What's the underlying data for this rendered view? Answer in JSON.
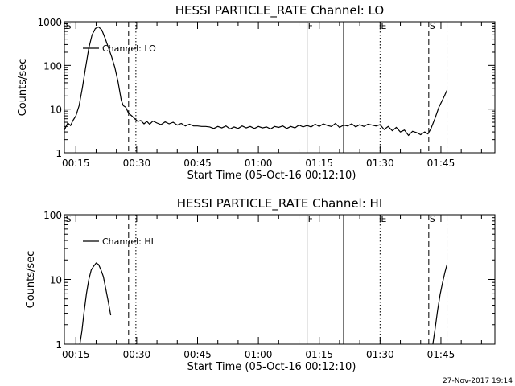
{
  "footer": {
    "timestamp": "27-Nov-2017 19:14"
  },
  "chart_data": [
    {
      "type": "line",
      "title": "HESSI PARTICLE_RATE Channel: LO",
      "xlabel": "Start Time (05-Oct-16 00:12:10)",
      "ylabel": "Counts/sec",
      "yscale": "log",
      "ylim": [
        1,
        1000
      ],
      "xlim_minutes": [
        12.17,
        118.3
      ],
      "yticks": [
        {
          "value": 1,
          "label": "1"
        },
        {
          "value": 10,
          "label": "10"
        },
        {
          "value": 100,
          "label": "100"
        },
        {
          "value": 1000,
          "label": "1000"
        }
      ],
      "xticks": [
        {
          "minute": 15,
          "label": "00:15"
        },
        {
          "minute": 30,
          "label": "00:30"
        },
        {
          "minute": 45,
          "label": "00:45"
        },
        {
          "minute": 60,
          "label": "01:00"
        },
        {
          "minute": 75,
          "label": "01:15"
        },
        {
          "minute": 90,
          "label": "01:30"
        },
        {
          "minute": 105,
          "label": "01:45"
        }
      ],
      "legend": {
        "label": "Channel: LO",
        "placement": "top-left"
      },
      "markers": [
        {
          "minute": 12.3,
          "label": "S",
          "style": "none"
        },
        {
          "minute": 28.0,
          "label": "",
          "style": "dashed"
        },
        {
          "minute": 29.8,
          "label": "",
          "style": "dotted"
        },
        {
          "minute": 72.0,
          "label": "F",
          "style": "solid"
        },
        {
          "minute": 81.0,
          "label": "",
          "style": "solid"
        },
        {
          "minute": 90.0,
          "label": "E",
          "style": "dotted"
        },
        {
          "minute": 102.0,
          "label": "S",
          "style": "dashed"
        },
        {
          "minute": 106.5,
          "label": "",
          "style": "dashdot"
        }
      ],
      "series": [
        {
          "x": [
            12.17,
            13.0,
            13.7,
            14.3,
            15.0,
            15.8,
            16.6,
            17.4,
            18.2,
            19.0,
            19.8,
            20.6,
            21.4,
            22.2,
            23.0,
            23.8,
            24.6,
            25.4,
            26.2,
            26.7,
            27.3,
            28.0,
            28.8,
            29.5,
            30.3,
            31.0,
            31.8,
            32.5,
            33.2,
            34.0,
            35.0,
            36.0,
            37.0,
            38.0,
            39.0,
            40.0,
            41.0,
            42.0,
            43.0,
            44.0,
            45.0,
            46.0,
            47.0,
            48.0,
            49.0,
            50.0,
            51.0,
            52.0,
            53.0,
            54.0,
            55.0,
            56.0,
            57.0,
            58.0,
            59.0,
            60.0,
            61.0,
            62.0,
            63.0,
            64.0,
            65.0,
            66.0,
            67.0,
            68.0,
            69.0,
            70.0,
            71.0,
            72.0,
            73.0,
            74.0,
            75.0,
            76.0,
            77.0,
            78.0,
            79.0,
            80.0,
            81.0,
            82.0,
            83.0,
            84.0,
            85.0,
            86.0,
            87.0,
            88.0,
            89.0,
            90.0,
            91.0,
            92.0,
            93.0,
            94.0,
            95.0,
            96.0,
            97.0,
            98.0,
            99.0,
            100.0,
            101.0,
            101.8,
            102.5,
            103.5,
            104.5,
            105.5,
            106.5
          ],
          "y": [
            3.3,
            4.8,
            4.2,
            5.5,
            7,
            12,
            30,
            90,
            250,
            500,
            700,
            760,
            650,
            420,
            260,
            160,
            90,
            42,
            16,
            12,
            11,
            8,
            7,
            6,
            5.2,
            5.5,
            4.6,
            5.2,
            4.5,
            5.3,
            4.8,
            4.4,
            5.1,
            4.6,
            5.0,
            4.3,
            4.7,
            4.1,
            4.5,
            4.1,
            4.1,
            4.0,
            4.0,
            3.9,
            3.6,
            4.0,
            3.7,
            4.1,
            3.5,
            3.9,
            3.6,
            4.1,
            3.7,
            4.0,
            3.6,
            4.0,
            3.7,
            3.9,
            3.5,
            4.0,
            3.8,
            4.1,
            3.6,
            4.0,
            3.7,
            4.3,
            3.9,
            4.2,
            3.9,
            4.5,
            4.0,
            4.6,
            4.2,
            4.0,
            4.7,
            3.8,
            4.3,
            4.1,
            4.6,
            3.9,
            4.4,
            4.0,
            4.5,
            4.3,
            4.1,
            4.4,
            3.4,
            4.0,
            3.2,
            3.8,
            3.0,
            3.3,
            2.5,
            3.1,
            2.9,
            2.6,
            3.0,
            2.7,
            3.5,
            6,
            11,
            17,
            27
          ]
        }
      ]
    },
    {
      "type": "line",
      "title": "HESSI PARTICLE_RATE Channel: HI",
      "xlabel": "Start Time (05-Oct-16 00:12:10)",
      "ylabel": "Counts/sec",
      "yscale": "log",
      "ylim": [
        1,
        100
      ],
      "xlim_minutes": [
        12.17,
        118.3
      ],
      "yticks": [
        {
          "value": 1,
          "label": "1"
        },
        {
          "value": 10,
          "label": "10"
        },
        {
          "value": 100,
          "label": "100"
        }
      ],
      "xticks": [
        {
          "minute": 15,
          "label": "00:15"
        },
        {
          "minute": 30,
          "label": "00:30"
        },
        {
          "minute": 45,
          "label": "00:45"
        },
        {
          "minute": 60,
          "label": "01:00"
        },
        {
          "minute": 75,
          "label": "01:15"
        },
        {
          "minute": 90,
          "label": "01:30"
        },
        {
          "minute": 105,
          "label": "01:45"
        }
      ],
      "legend": {
        "label": "Channel: HI",
        "placement": "top-left"
      },
      "markers": [
        {
          "minute": 12.3,
          "label": "S",
          "style": "none"
        },
        {
          "minute": 28.0,
          "label": "",
          "style": "dashed"
        },
        {
          "minute": 29.8,
          "label": "",
          "style": "dotted"
        },
        {
          "minute": 72.0,
          "label": "F",
          "style": "solid"
        },
        {
          "minute": 81.0,
          "label": "",
          "style": "solid"
        },
        {
          "minute": 90.0,
          "label": "E",
          "style": "dotted"
        },
        {
          "minute": 102.0,
          "label": "S",
          "style": "dashed"
        },
        {
          "minute": 106.5,
          "label": "",
          "style": "dashdot"
        }
      ],
      "series": [
        {
          "x": [
            16.0,
            16.5,
            17.0,
            17.6,
            18.2,
            18.8,
            19.4,
            20.0,
            20.6,
            21.2,
            21.8,
            22.4,
            23.0,
            23.6
          ],
          "y": [
            1,
            1.6,
            3,
            6,
            10,
            14,
            16,
            18,
            17,
            14,
            11,
            7,
            4.5,
            2.8
          ]
        },
        {
          "x": [
            103.0,
            103.6,
            104.2,
            104.8,
            105.4,
            106.0,
            106.5
          ],
          "y": [
            1,
            1.8,
            3.4,
            5.8,
            9,
            13,
            17
          ]
        }
      ]
    }
  ]
}
